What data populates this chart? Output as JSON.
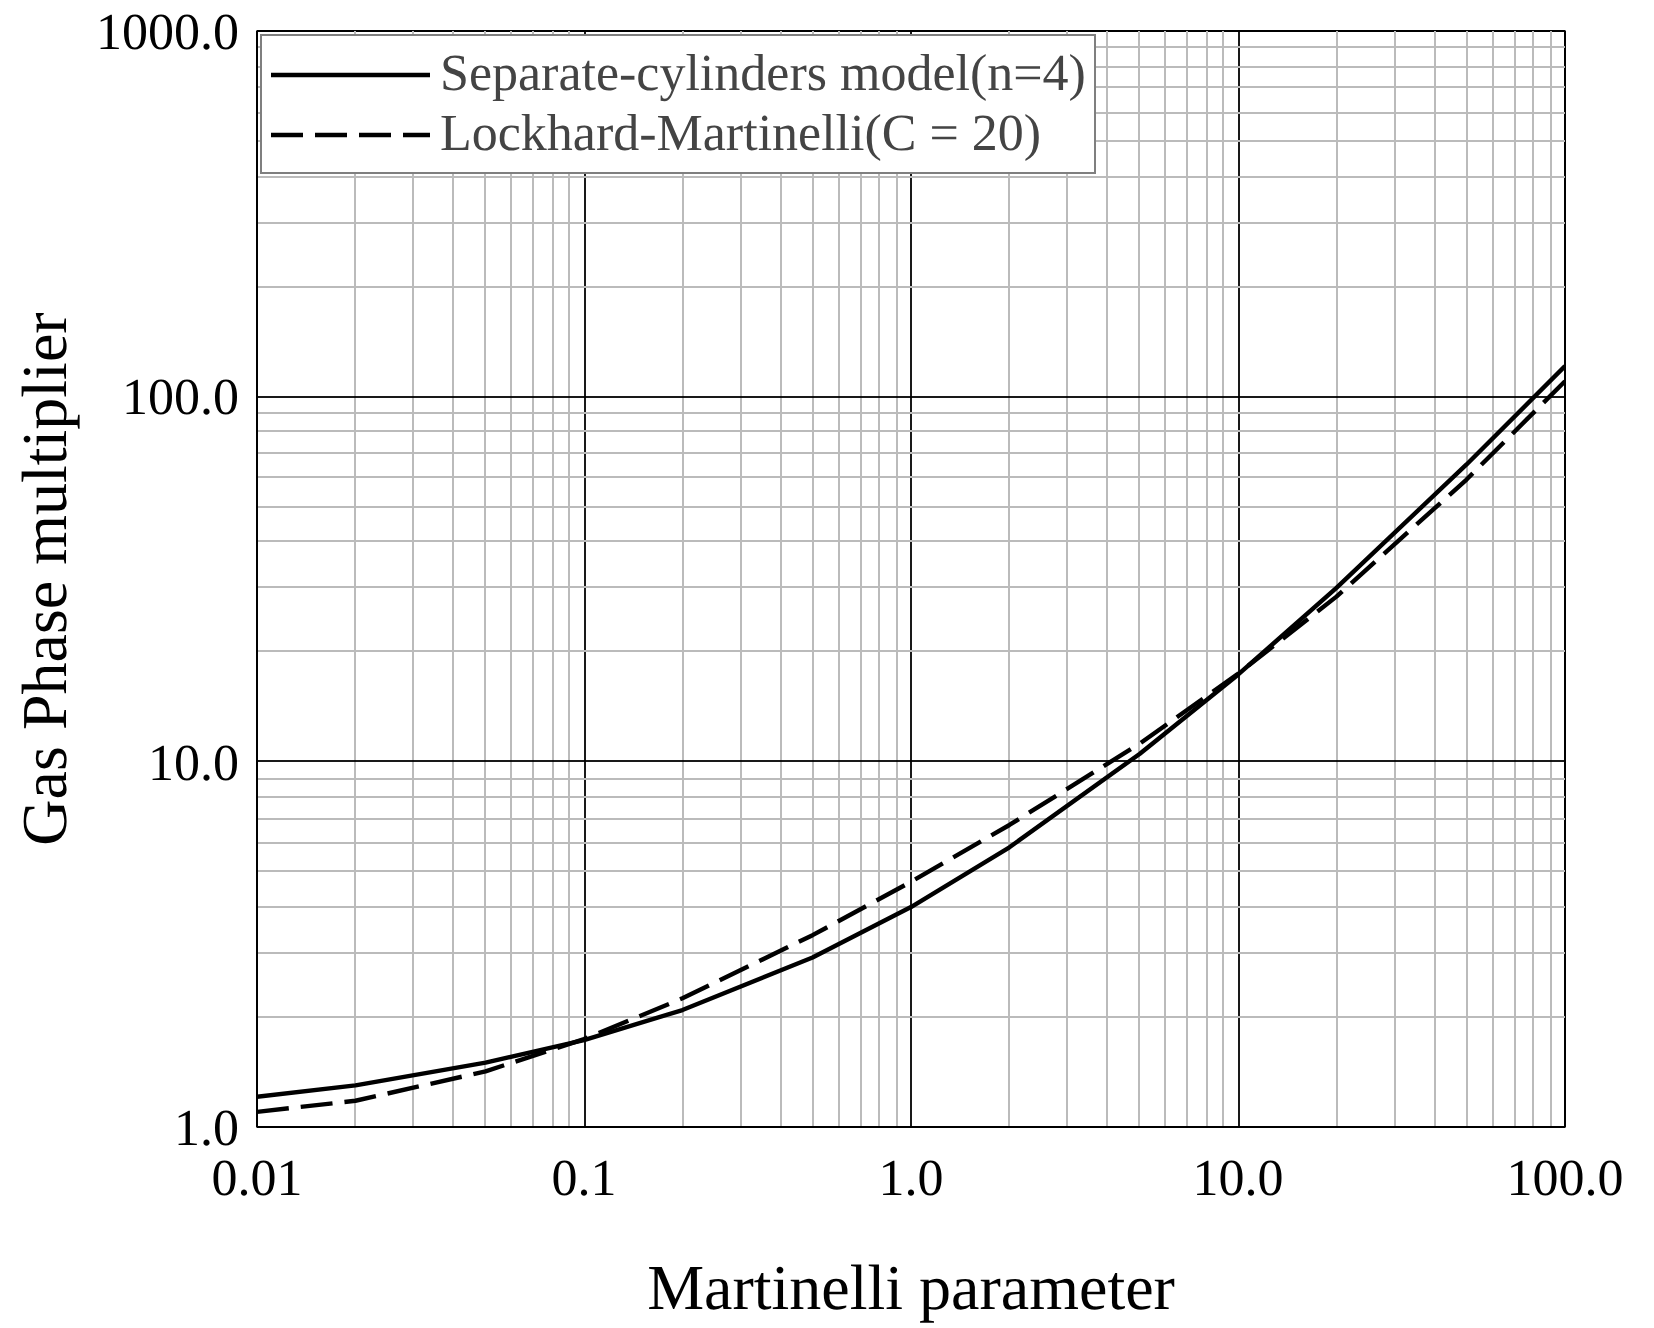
{
  "chart_data": {
    "type": "line",
    "xlabel": "Martinelli parameter",
    "ylabel": "Gas Phase multiplier",
    "log": "xy",
    "grid": true,
    "legend": "top left",
    "marker": "none",
    "xlim": [
      0.01,
      100
    ],
    "ylim": [
      1,
      1000
    ],
    "xticks": [
      0.01,
      0.1,
      {
        "value": 1,
        "label": "1.0"
      },
      {
        "value": 10,
        "label": "10.0"
      },
      {
        "value": 100,
        "label": "100.0"
      }
    ],
    "yticks": [
      {
        "value": 1,
        "label": "1.0"
      },
      {
        "value": 10,
        "label": "10.0"
      },
      {
        "value": 100,
        "label": "100.0"
      },
      {
        "value": 1000,
        "label": "1000.0"
      }
    ],
    "x": [
      0.01,
      0.02,
      0.05,
      0.1,
      0.2,
      0.5,
      1,
      2,
      5,
      10,
      20,
      50,
      100
    ],
    "series": [
      {
        "name": "Separate-cylinders model(n=4)",
        "color": "#000000",
        "line_style": "solid",
        "values": [
          1.21,
          1.3,
          1.5,
          1.73,
          2.09,
          2.91,
          4.0,
          5.83,
          10.5,
          17.3,
          29.9,
          65.1,
          121
        ]
      },
      {
        "name": "Lockhard-Martinelli(C = 20)",
        "color": "#000000",
        "line_style": "dashed",
        "values": [
          1.1,
          1.18,
          1.42,
          1.74,
          2.25,
          3.35,
          4.69,
          6.71,
          11.2,
          17.4,
          28.3,
          59.2,
          110
        ]
      }
    ]
  }
}
